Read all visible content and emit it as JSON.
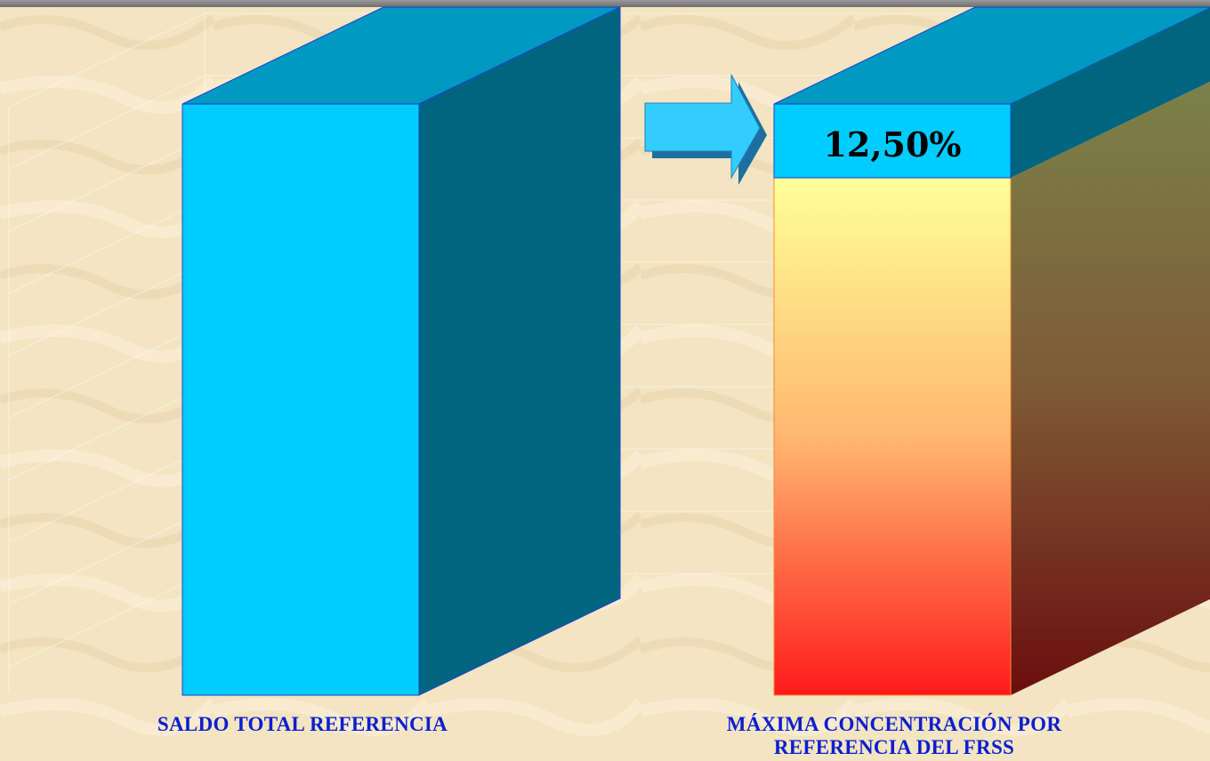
{
  "chart_data": {
    "type": "bar",
    "categories": [
      "SALDO TOTAL REFERENCIA",
      "MÁXIMA CONCENTRACIÓN POR REFERENCIA DEL FRSS"
    ],
    "values": [
      100,
      12.5
    ],
    "value_label": "12,50%",
    "title": "",
    "xlabel": "",
    "ylabel": ""
  },
  "labels": {
    "left": "SALDO TOTAL REFERENCIA",
    "right_line1": "MÁXIMA CONCENTRACIÓN POR",
    "right_line2": "REFERENCIA DEL FRSS"
  },
  "colors": {
    "bar_front": "#00ccff",
    "bar_side": "#006680",
    "bar_top": "#0099c2",
    "gradient_top": "#ffff99",
    "gradient_bottom": "#ff1a1a",
    "label_text": "#0b1fd0",
    "arrow": "#33ccff",
    "background": "#f3e4c2"
  }
}
